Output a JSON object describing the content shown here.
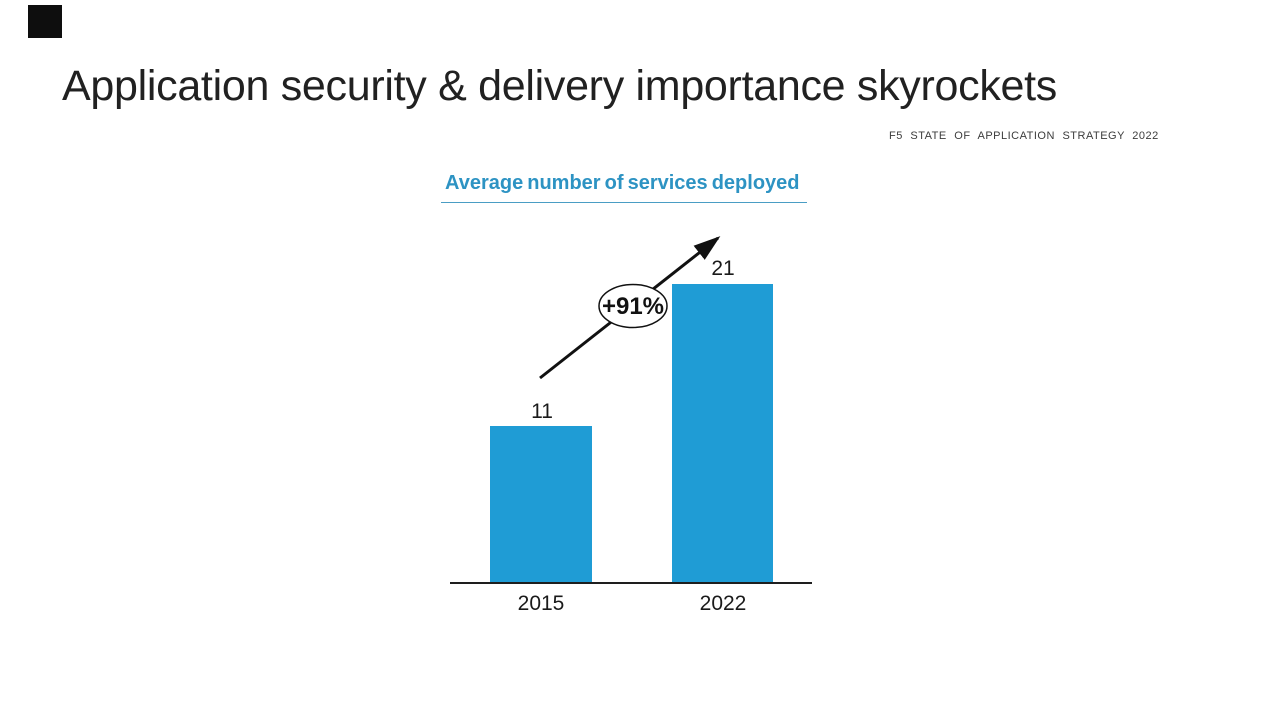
{
  "slide": {
    "title": "Application security & delivery importance skyrockets",
    "source": "F5 STATE OF APPLICATION STRATEGY 2022"
  },
  "chart_data": {
    "type": "bar",
    "title": "Average number of services deployed",
    "categories": [
      "2015",
      "2022"
    ],
    "values": [
      11,
      21
    ],
    "value_labels": [
      "11",
      "21"
    ],
    "annotation": "+91%",
    "xlabel": "",
    "ylabel": "",
    "ylim": [
      0,
      22
    ],
    "grid": "off",
    "legend": "none",
    "bar_color": "#1f9cd5",
    "accent_color": "#2d93c3",
    "axis_color": "#1e1e1e"
  }
}
